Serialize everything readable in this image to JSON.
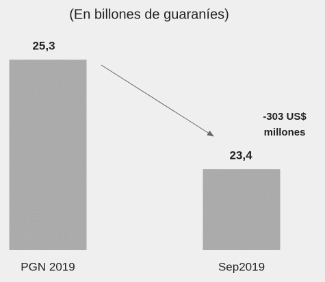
{
  "chart_data": {
    "type": "bar",
    "subtitle": "(En billones de guaraníes)",
    "categories": [
      "PGN 2019",
      "Sep2019"
    ],
    "values": [
      25.3,
      23.4
    ],
    "value_labels": [
      "25,3",
      "23,4"
    ],
    "color": "#a9a9a9",
    "ylim": [
      22,
      25.6
    ],
    "annotation": [
      "-303 US$",
      "millones"
    ]
  }
}
